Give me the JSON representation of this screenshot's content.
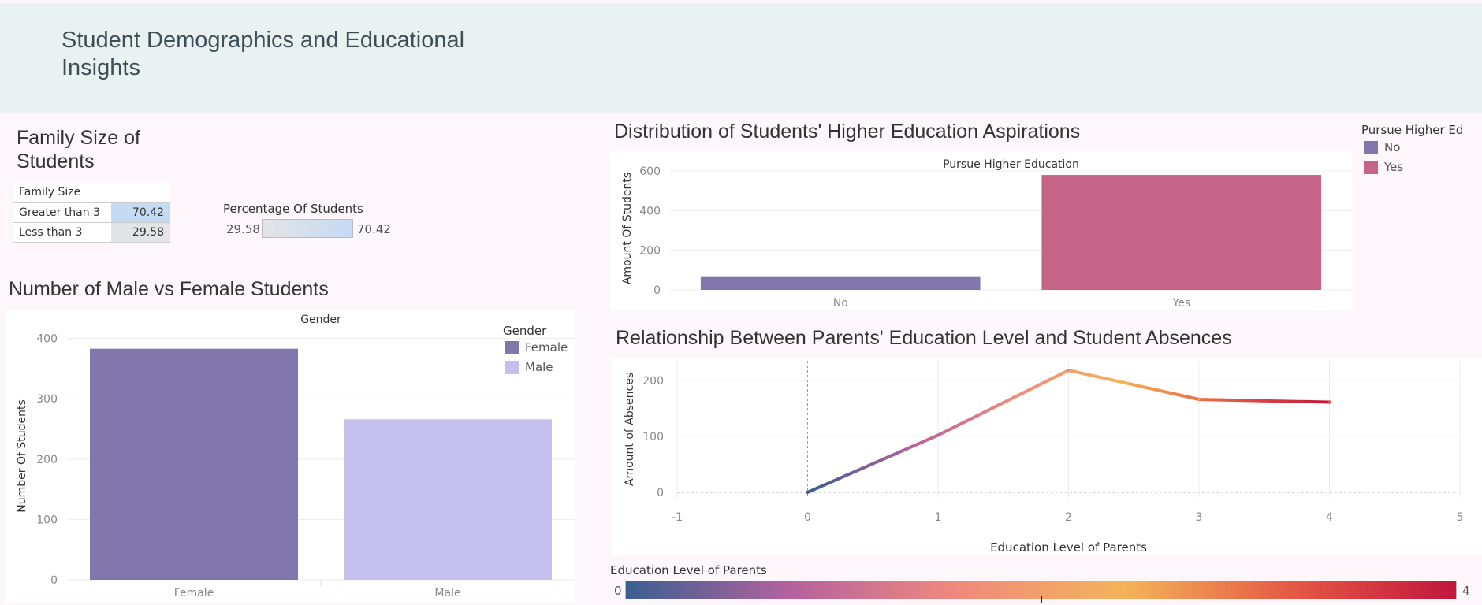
{
  "dashboard": {
    "title": "Student Demographics and Educational Insights"
  },
  "family_size": {
    "title": "Family Size of Students",
    "column_header": "Family Size",
    "rows": [
      {
        "label": "Greater than 3",
        "value": "70.42"
      },
      {
        "label": "Less than 3",
        "value": "29.58"
      }
    ],
    "legend_title": "Percentage Of Students",
    "legend_min": "29.58",
    "legend_max": "70.42"
  },
  "gender": {
    "title": "Number of Male vs Female Students",
    "legend_title": "Gender",
    "legend_items": [
      {
        "label": "Female",
        "color": "#8177ad"
      },
      {
        "label": "Male",
        "color": "#c6c0ef"
      }
    ]
  },
  "aspirations": {
    "title": "Distribution of Students' Higher Education Aspirations",
    "legend_title": "Pursue Higher Ed",
    "legend_items": [
      {
        "label": "No",
        "color": "#8177ad"
      },
      {
        "label": "Yes",
        "color": "#c56487"
      }
    ]
  },
  "relationship": {
    "title": "Relationship Between Parents' Education Level and Student Absences",
    "legend_title": "Education Level of Parents",
    "legend_min": "0",
    "legend_max": "4"
  },
  "chart_data": [
    {
      "id": "gender",
      "type": "bar",
      "title": "Gender",
      "categories": [
        "Female",
        "Male"
      ],
      "values": [
        383,
        266
      ],
      "colors": [
        "#8177ad",
        "#c6c0ef"
      ],
      "ylabel": "Number Of Students",
      "ylim": [
        0,
        410
      ],
      "yticks": [
        0,
        100,
        200,
        300,
        400
      ],
      "grid": true,
      "legend": "top-right"
    },
    {
      "id": "aspirations",
      "type": "bar",
      "title": "Pursue Higher Education",
      "categories": [
        "No",
        "Yes"
      ],
      "values": [
        69,
        580
      ],
      "colors": [
        "#8177ad",
        "#c56487"
      ],
      "ylabel": "Amount Of Students",
      "ylim": [
        0,
        620
      ],
      "yticks": [
        0,
        200,
        400,
        600
      ],
      "grid": true,
      "legend": "right"
    },
    {
      "id": "relationship",
      "type": "line",
      "x": [
        0,
        1,
        2,
        3,
        4
      ],
      "values": [
        0,
        102,
        218,
        166,
        161
      ],
      "xlabel": "Education Level of Parents",
      "ylabel": "Amount of Absences",
      "xlim": [
        -1,
        5
      ],
      "ylim": [
        -10,
        235
      ],
      "xticks": [
        -1,
        0,
        1,
        2,
        3,
        4,
        5
      ],
      "yticks": [
        0,
        100,
        200
      ],
      "gradient": [
        "#3a5f91",
        "#b5629e",
        "#f08a7c",
        "#f3b45a",
        "#e55a44",
        "#c2163d"
      ],
      "grid": true,
      "legend": "bottom"
    }
  ]
}
